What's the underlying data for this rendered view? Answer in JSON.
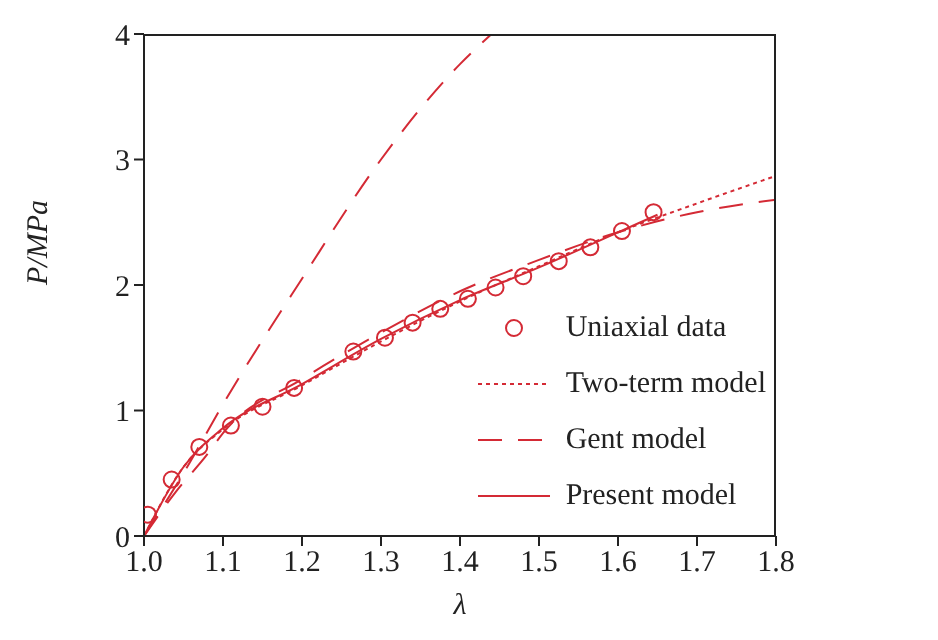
{
  "chart_data": {
    "type": "line",
    "xlabel": "λ",
    "ylabel": "P/MPa",
    "xlim": [
      1.0,
      1.8
    ],
    "xticks": [
      {
        "value": 1.0,
        "label": "1.0"
      },
      1.1,
      1.2,
      1.3,
      1.4,
      1.5,
      1.6,
      1.7,
      1.8
    ],
    "ylim": [
      0,
      4
    ],
    "yticks": [
      0,
      1,
      2,
      3,
      4
    ],
    "grid": false,
    "legend": "bottom right",
    "series": [
      {
        "name": "Uniaxial data",
        "type": "scatter",
        "marker": "circle",
        "color": "#d42a35",
        "x": [
          1.005,
          1.035,
          1.07,
          1.11,
          1.15,
          1.19,
          1.265,
          1.305,
          1.34,
          1.375,
          1.41,
          1.445,
          1.48,
          1.525,
          1.565,
          1.605,
          1.645
        ],
        "values": [
          0.17,
          0.45,
          0.71,
          0.88,
          1.03,
          1.18,
          1.47,
          1.58,
          1.7,
          1.81,
          1.89,
          1.98,
          2.07,
          2.19,
          2.3,
          2.43,
          2.58
        ]
      },
      {
        "name": "Two-term model",
        "line_style": "dotted",
        "color": "#d42a35",
        "x": [
          1.0,
          1.05,
          1.1,
          1.2,
          1.3,
          1.4,
          1.5,
          1.6,
          1.7,
          1.8
        ],
        "values": [
          0,
          0.55,
          0.85,
          1.2,
          1.55,
          1.87,
          2.15,
          2.42,
          2.65,
          2.87
        ]
      },
      {
        "name": "Gent model",
        "line_style": "dashed",
        "color": "#d42a35",
        "x": [
          1.0,
          1.04,
          1.08,
          1.1,
          1.2,
          1.3,
          1.4,
          1.5,
          1.6,
          1.7,
          1.8
        ],
        "values": [
          0,
          0.35,
          0.65,
          0.82,
          1.25,
          1.62,
          1.95,
          2.2,
          2.42,
          2.58,
          2.68
        ]
      },
      {
        "line_style": "dashed",
        "color": "#d42a35",
        "x": [
          1.0,
          1.05,
          1.1,
          1.2,
          1.3,
          1.4,
          1.44
        ],
        "values": [
          0,
          0.5,
          1.05,
          2.05,
          3.0,
          3.76,
          4.0
        ]
      },
      {
        "name": "Present model",
        "line_style": "solid",
        "color": "#d42a35",
        "x": [
          1.0,
          1.05,
          1.1,
          1.2,
          1.3,
          1.4,
          1.5,
          1.6,
          1.65
        ],
        "values": [
          0,
          0.55,
          0.86,
          1.21,
          1.57,
          1.88,
          2.14,
          2.42,
          2.56
        ]
      }
    ]
  }
}
